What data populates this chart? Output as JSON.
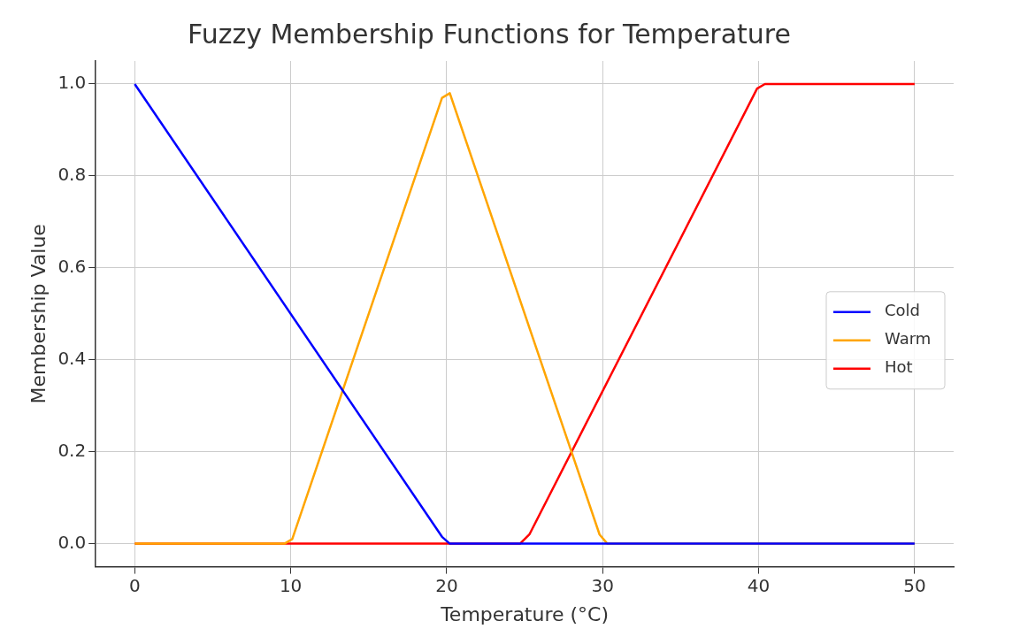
{
  "chart_data": {
    "type": "line",
    "title": "Fuzzy Membership Functions for Temperature",
    "xlabel": "Temperature (°C)",
    "ylabel": "Membership Value",
    "xlim": [
      -2.5,
      52.5
    ],
    "ylim": [
      -0.05,
      1.05
    ],
    "xticks": [
      0,
      10,
      20,
      30,
      40,
      50
    ],
    "yticks": [
      {
        "value": 0,
        "label": "0.0"
      },
      {
        "value": 0.2,
        "label": "0.2"
      },
      {
        "value": 0.4,
        "label": "0.4"
      },
      {
        "value": 0.6,
        "label": "0.6"
      },
      {
        "value": 0.8,
        "label": "0.8"
      },
      {
        "value": 1,
        "label": "1.0"
      }
    ],
    "grid": true,
    "legend": "right",
    "marker": "none",
    "line_style": "solid",
    "series": [
      {
        "name": "Cold",
        "color": "#0000ff",
        "x": [
          0,
          19.7,
          20.2,
          50
        ],
        "values": [
          1,
          0.015,
          0,
          0
        ]
      },
      {
        "name": "Warm",
        "color": "#ffa500",
        "x": [
          0,
          9.6,
          10.1,
          19.7,
          20.2,
          29.8,
          30.3,
          50
        ],
        "values": [
          0,
          0,
          0.01,
          0.97,
          0.98,
          0.02,
          0,
          0
        ]
      },
      {
        "name": "Hot",
        "color": "#ff0000",
        "x": [
          0,
          24.7,
          25.3,
          39.9,
          40.4,
          50
        ],
        "values": [
          0,
          0,
          0.02,
          0.99,
          1,
          1
        ]
      }
    ]
  }
}
